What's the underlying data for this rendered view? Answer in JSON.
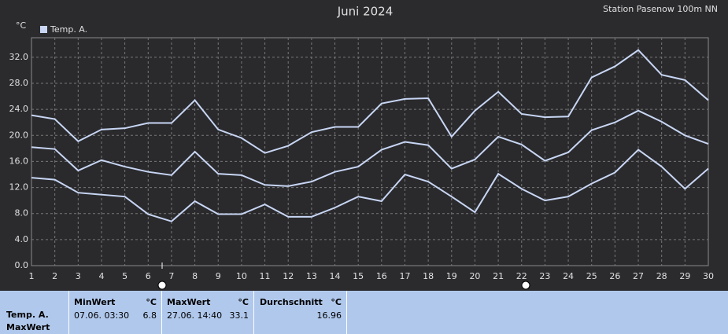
{
  "chart_data": {
    "type": "line",
    "title": "Juni 2024",
    "subtitle": "Station Pasenow 100m NN",
    "y_label": "°C",
    "x": [
      1,
      2,
      3,
      4,
      5,
      6,
      7,
      8,
      9,
      10,
      11,
      12,
      13,
      14,
      15,
      16,
      17,
      18,
      19,
      20,
      21,
      22,
      23,
      24,
      25,
      26,
      27,
      28,
      29,
      30
    ],
    "xlim": [
      1,
      30
    ],
    "ylim": [
      0,
      35
    ],
    "yticks": [
      {
        "value": 0,
        "label": "0.0"
      },
      {
        "value": 4,
        "label": "4.0"
      },
      {
        "value": 8,
        "label": "8.0"
      },
      {
        "value": 12,
        "label": "12.0"
      },
      {
        "value": 16,
        "label": "16.0"
      },
      {
        "value": 20,
        "label": "20.0"
      },
      {
        "value": 24,
        "label": "24.0"
      },
      {
        "value": 28,
        "label": "28.0"
      },
      {
        "value": 32,
        "label": "32.0"
      }
    ],
    "grid": true,
    "series": [
      {
        "name": "Temp. A.",
        "color": "#c8d6f4",
        "max": [
          23.1,
          22.5,
          19.1,
          20.9,
          21.1,
          21.9,
          21.9,
          25.4,
          20.9,
          19.6,
          17.3,
          18.4,
          20.5,
          21.3,
          21.3,
          24.9,
          25.6,
          25.7,
          19.8,
          23.8,
          26.7,
          23.3,
          22.8,
          22.9,
          28.9,
          30.6,
          33.1,
          29.3,
          28.5,
          25.4
        ],
        "mean": [
          18.2,
          17.9,
          14.6,
          16.2,
          15.2,
          14.4,
          13.9,
          17.5,
          14.1,
          13.9,
          12.4,
          12.2,
          12.9,
          14.4,
          15.2,
          17.8,
          19.0,
          18.5,
          14.9,
          16.3,
          19.8,
          18.6,
          16.1,
          17.4,
          20.8,
          22.0,
          23.8,
          22.1,
          20.0,
          18.7
        ],
        "min": [
          13.5,
          13.2,
          11.2,
          10.9,
          10.6,
          7.9,
          6.8,
          9.9,
          7.9,
          7.9,
          9.4,
          7.5,
          7.5,
          8.9,
          10.6,
          9.9,
          14.0,
          12.9,
          10.6,
          8.2,
          14.1,
          11.8,
          10.0,
          10.6,
          12.6,
          14.3,
          17.8,
          15.2,
          11.8,
          14.9
        ]
      }
    ]
  },
  "table": {
    "row_labels": [
      "Temp. A.",
      "MaxWert"
    ],
    "columns": [
      {
        "header": "MinWert",
        "unit": "°C",
        "time": "07.06.  03:30",
        "value": "6.8"
      },
      {
        "header": "MaxWert",
        "unit": "°C",
        "time": "27.06.  14:40",
        "value": "33.1"
      },
      {
        "header": "Durchschnitt",
        "unit": "°C",
        "value": "16.96"
      }
    ]
  }
}
